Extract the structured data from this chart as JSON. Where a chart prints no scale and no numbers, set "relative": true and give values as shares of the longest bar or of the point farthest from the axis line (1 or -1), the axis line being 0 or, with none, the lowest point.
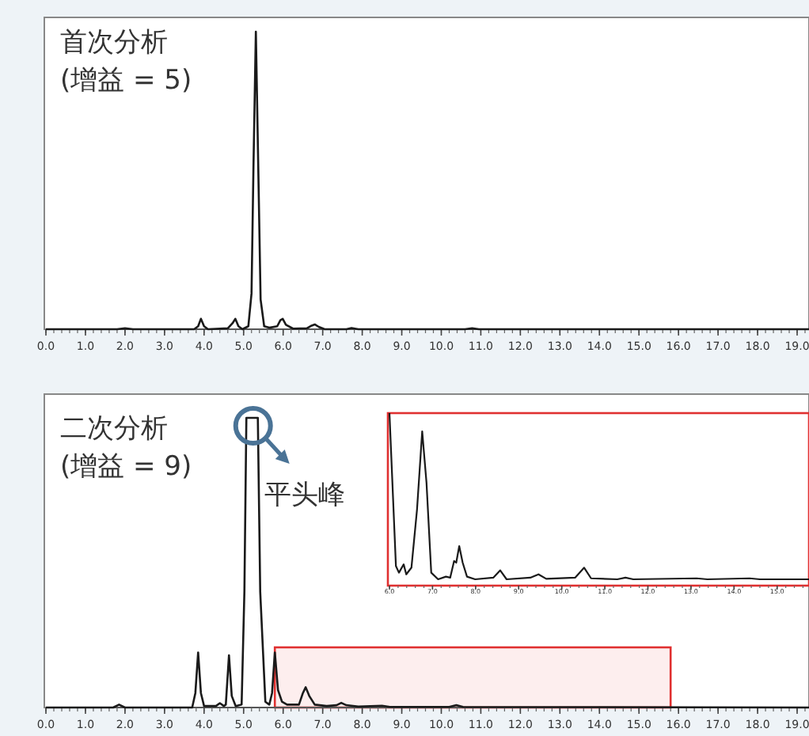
{
  "chart_data": [
    {
      "type": "line",
      "relative": true,
      "title": "首次分析",
      "subtitle": "(增益 = 5)",
      "xlim": [
        0,
        19.3
      ],
      "xticks": [
        {
          "value": 0,
          "label": "0.0"
        },
        {
          "value": 1,
          "label": "1.0"
        },
        {
          "value": 2,
          "label": "2.0"
        },
        {
          "value": 3,
          "label": "3.0"
        },
        {
          "value": 4,
          "label": "4.0"
        },
        {
          "value": 5,
          "label": "5.0"
        },
        {
          "value": 6,
          "label": "6.0"
        },
        {
          "value": 7,
          "label": "7.0"
        },
        {
          "value": 8,
          "label": "8.0"
        },
        {
          "value": 9,
          "label": "9.0"
        },
        {
          "value": 10,
          "label": "10.0"
        },
        {
          "value": 11,
          "label": "11.0"
        },
        {
          "value": 12,
          "label": "12.0"
        },
        {
          "value": 13,
          "label": "13.0"
        },
        {
          "value": 14,
          "label": "14.0"
        },
        {
          "value": 15,
          "label": "15.0"
        },
        {
          "value": 16,
          "label": "16.0"
        },
        {
          "value": 17,
          "label": "17.0"
        },
        {
          "value": 18,
          "label": "18.0"
        },
        {
          "value": 19,
          "label": "19.0"
        }
      ],
      "series": [
        {
          "color": "#1a1a1a",
          "x": [
            0,
            1.8,
            2.0,
            2.2,
            3.75,
            3.85,
            3.92,
            4.0,
            4.1,
            4.6,
            4.72,
            4.79,
            4.87,
            4.97,
            5.12,
            5.2,
            5.25,
            5.31,
            5.37,
            5.43,
            5.52,
            5.65,
            5.85,
            5.93,
            5.99,
            6.07,
            6.25,
            6.6,
            6.72,
            6.8,
            6.9,
            7.05,
            7.6,
            7.73,
            7.9,
            10.6,
            10.78,
            10.95,
            19.3
          ],
          "values": [
            0,
            0,
            0.003,
            0,
            0,
            0.01,
            0.035,
            0.01,
            0,
            0.003,
            0.02,
            0.035,
            0.01,
            0,
            0.01,
            0.12,
            0.55,
            1,
            0.55,
            0.1,
            0.01,
            0.005,
            0.01,
            0.03,
            0.035,
            0.015,
            0.002,
            0.003,
            0.012,
            0.016,
            0.008,
            0,
            0,
            0.004,
            0,
            0,
            0.003,
            0,
            0
          ]
        }
      ]
    },
    {
      "type": "line",
      "relative": true,
      "title": "二次分析",
      "subtitle": "(增益 = 9)",
      "xlim": [
        0,
        19.3
      ],
      "xticks": [
        {
          "value": 0,
          "label": "0.0"
        },
        {
          "value": 1,
          "label": "1.0"
        },
        {
          "value": 2,
          "label": "2.0"
        },
        {
          "value": 3,
          "label": "3.0"
        },
        {
          "value": 4,
          "label": "4.0"
        },
        {
          "value": 5,
          "label": "5.0"
        },
        {
          "value": 6,
          "label": "6.0"
        },
        {
          "value": 7,
          "label": "7.0"
        },
        {
          "value": 8,
          "label": "8.0"
        },
        {
          "value": 9,
          "label": "9.0"
        },
        {
          "value": 10,
          "label": "10.0"
        },
        {
          "value": 11,
          "label": "11.0"
        },
        {
          "value": 12,
          "label": "12.0"
        },
        {
          "value": 13,
          "label": "13.0"
        },
        {
          "value": 14,
          "label": "14.0"
        },
        {
          "value": 15,
          "label": "15.0"
        },
        {
          "value": 16,
          "label": "16.0"
        },
        {
          "value": 17,
          "label": "17.0"
        },
        {
          "value": 18,
          "label": "18.0"
        },
        {
          "value": 19,
          "label": "19.0"
        }
      ],
      "series": [
        {
          "color": "#1a1a1a",
          "x": [
            0,
            1.7,
            1.85,
            2.0,
            3.7,
            3.78,
            3.85,
            3.92,
            4.0,
            4.3,
            4.4,
            4.5,
            4.55,
            4.63,
            4.7,
            4.8,
            4.95,
            5.02,
            5.07,
            5.1,
            5.32,
            5.36,
            5.42,
            5.55,
            5.65,
            5.72,
            5.79,
            5.87,
            5.97,
            6.1,
            6.4,
            6.5,
            6.57,
            6.66,
            6.8,
            7.1,
            7.35,
            7.47,
            7.6,
            7.9,
            8.5,
            8.7,
            10.2,
            10.38,
            10.55,
            19.3
          ],
          "values": [
            0,
            0,
            0.01,
            0,
            0,
            0.05,
            0.19,
            0.05,
            0.005,
            0.005,
            0.015,
            0.005,
            0.01,
            0.18,
            0.04,
            0.005,
            0.01,
            0.4,
            1,
            1,
            1,
            1,
            0.4,
            0.02,
            0.01,
            0.05,
            0.19,
            0.06,
            0.02,
            0.01,
            0.01,
            0.05,
            0.07,
            0.04,
            0.01,
            0.005,
            0.008,
            0.016,
            0.008,
            0.003,
            0.006,
            0.002,
            0.002,
            0.008,
            0.002,
            0
          ]
        }
      ],
      "annotations": [
        {
          "text": "平头峰",
          "x": 5.2,
          "y": 1
        }
      ],
      "bands": [
        {
          "axis": "x",
          "from": 5.79,
          "to": 15.8,
          "color": "#e03030"
        }
      ]
    },
    {
      "type": "line",
      "relative": true,
      "xlim": [
        6.0,
        15.74
      ],
      "xticks": [
        {
          "value": 6,
          "label": "6.0"
        },
        {
          "value": 7,
          "label": "7.0"
        },
        {
          "value": 8,
          "label": "8.0"
        },
        {
          "value": 9,
          "label": "9.0"
        },
        {
          "value": 10,
          "label": "10.0"
        },
        {
          "value": 11,
          "label": "11.0"
        },
        {
          "value": 12,
          "label": "12.0"
        },
        {
          "value": 13,
          "label": "13.0"
        },
        {
          "value": 14,
          "label": "14.0"
        },
        {
          "value": 15,
          "label": "15.0"
        }
      ],
      "series": [
        {
          "color": "#1a1a1a",
          "x": [
            6.0,
            6.15,
            6.22,
            6.33,
            6.39,
            6.51,
            6.64,
            6.76,
            6.86,
            6.97,
            7.13,
            7.31,
            7.41,
            7.5,
            7.55,
            7.62,
            7.7,
            7.8,
            7.99,
            8.41,
            8.57,
            8.72,
            9.27,
            9.46,
            9.64,
            10.31,
            10.52,
            10.68,
            11.29,
            11.48,
            11.66,
            13.13,
            13.38,
            14.36,
            14.6,
            15.74
          ],
          "values": [
            1,
            0.08,
            0.04,
            0.09,
            0.03,
            0.07,
            0.42,
            0.89,
            0.58,
            0.04,
            0,
            0.016,
            0.01,
            0.11,
            0.1,
            0.2,
            0.1,
            0.016,
            0,
            0.01,
            0.054,
            0,
            0.01,
            0.03,
            0.003,
            0.01,
            0.07,
            0.006,
            0,
            0.01,
            0,
            0.006,
            0,
            0.006,
            0,
            0
          ]
        }
      ]
    }
  ]
}
